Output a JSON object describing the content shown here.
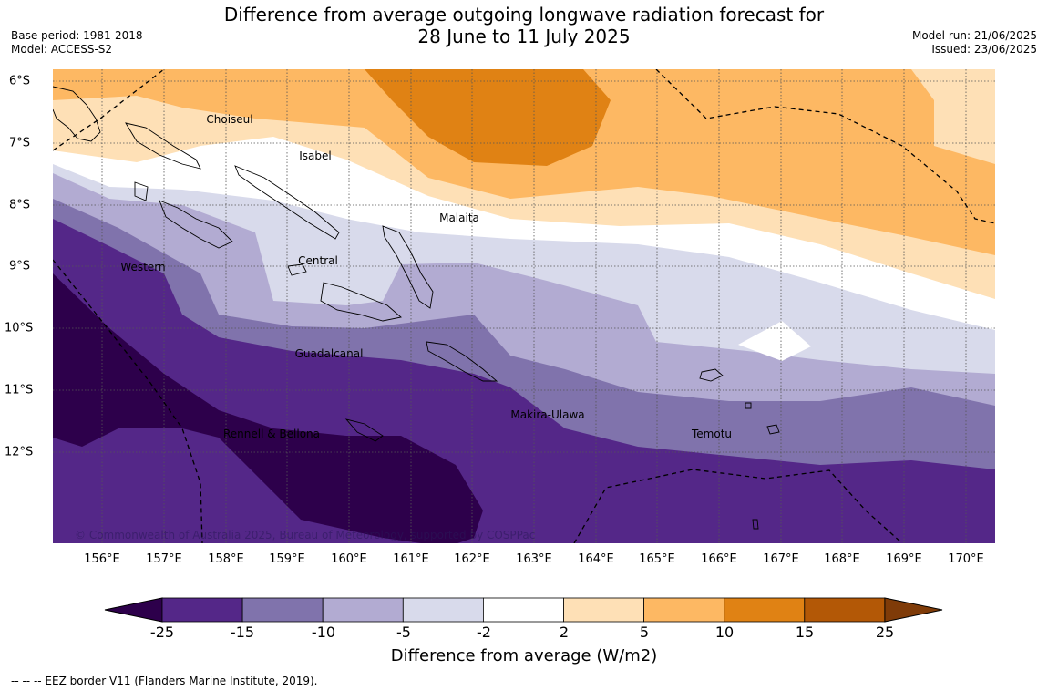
{
  "header": {
    "title_line1": "Difference from average outgoing longwave radiation forecast for",
    "title_line2": "28 June to 11 July 2025",
    "base_period": "Base period: 1981-2018",
    "model": "Model: ACCESS-S2",
    "model_run": "Model run: 21/06/2025",
    "issued": "Issued: 23/06/2025"
  },
  "map": {
    "lat_labels": [
      "6°S",
      "7°S",
      "8°S",
      "9°S",
      "10°S",
      "11°S",
      "12°S"
    ],
    "lon_labels": [
      "156°E",
      "157°E",
      "158°E",
      "159°E",
      "160°E",
      "161°E",
      "162°E",
      "163°E",
      "164°E",
      "165°E",
      "166°E",
      "167°E",
      "168°E",
      "169°E",
      "170°E"
    ],
    "regions": [
      "Choiseul",
      "Isabel",
      "Malaita",
      "Western",
      "Central",
      "Guadalcanal",
      "Makira-Ulawa",
      "Rennell & Bellona",
      "Temotu"
    ],
    "copyright": "© Commonwealth of Australia 2025, Bureau of Meteorology, supported by COSPPac"
  },
  "colorbar": {
    "ticks": [
      "-25",
      "-15",
      "-10",
      "-5",
      "-2",
      "2",
      "5",
      "10",
      "15",
      "25"
    ],
    "colors": [
      "#2d004b",
      "#542788",
      "#8073ac",
      "#b2abd2",
      "#d8daeb",
      "#ffffff",
      "#fee0b6",
      "#fdb863",
      "#e08214",
      "#b35806",
      "#7f3b08"
    ],
    "title": "Difference from average (W/m2)"
  },
  "footnote": "--  --  -- EEZ border V11 (Flanders Marine Institute, 2019)."
}
